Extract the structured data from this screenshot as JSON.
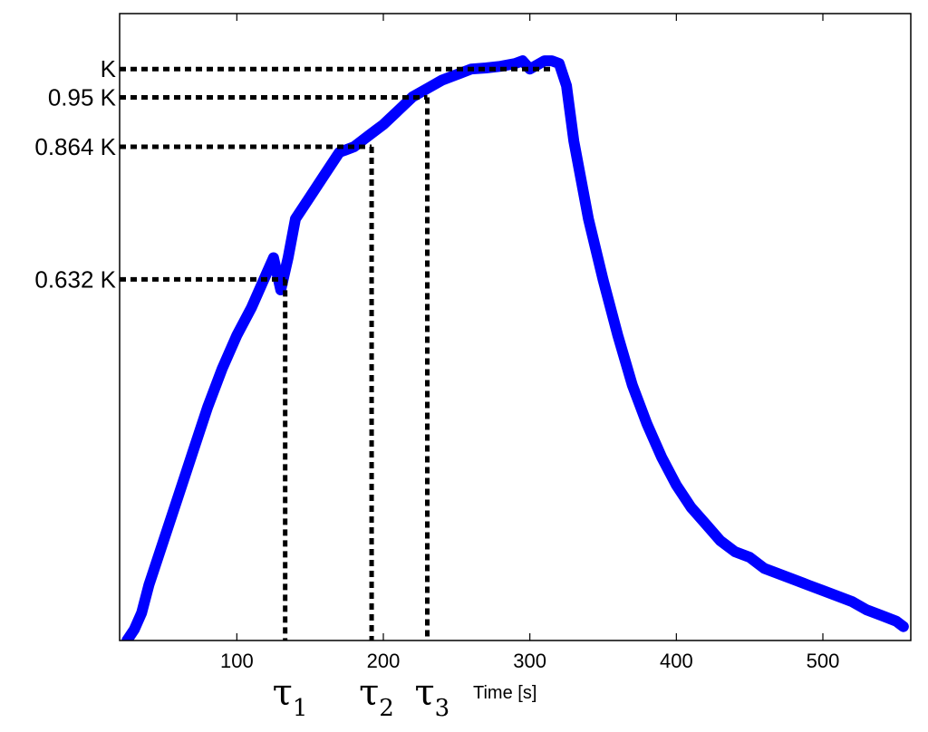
{
  "chart_data": {
    "type": "line",
    "title": "",
    "xlabel": "Time [s]",
    "ylabel": "",
    "xlim": [
      20,
      560
    ],
    "ylim": [
      0,
      1.13
    ],
    "grid": false,
    "x_ticks": [
      100,
      200,
      300,
      400,
      500
    ],
    "x_tick_labels": [
      "100",
      "200",
      "300",
      "400",
      "500"
    ],
    "series": [
      {
        "color": "#0000ff",
        "x": [
          25,
          30,
          35,
          40,
          50,
          60,
          70,
          80,
          90,
          100,
          110,
          120,
          125,
          130,
          135,
          140,
          150,
          160,
          170,
          180,
          190,
          195,
          200,
          210,
          220,
          230,
          240,
          250,
          260,
          270,
          280,
          290,
          295,
          300,
          310,
          315,
          320,
          325,
          330,
          340,
          350,
          360,
          370,
          380,
          390,
          400,
          410,
          420,
          430,
          440,
          450,
          460,
          470,
          480,
          490,
          500,
          510,
          520,
          530,
          540,
          550,
          555
        ],
        "y": [
          0.0,
          0.02,
          0.05,
          0.1,
          0.18,
          0.26,
          0.34,
          0.42,
          0.49,
          0.55,
          0.6,
          0.66,
          0.69,
          0.632,
          0.69,
          0.76,
          0.8,
          0.84,
          0.88,
          0.89,
          0.91,
          0.92,
          0.93,
          0.955,
          0.98,
          0.995,
          1.01,
          1.02,
          1.03,
          1.032,
          1.035,
          1.04,
          1.045,
          1.03,
          1.045,
          1.045,
          1.04,
          1.0,
          0.9,
          0.76,
          0.65,
          0.55,
          0.46,
          0.39,
          0.33,
          0.28,
          0.24,
          0.21,
          0.18,
          0.16,
          0.15,
          0.13,
          0.12,
          0.11,
          0.1,
          0.09,
          0.08,
          0.07,
          0.055,
          0.045,
          0.035,
          0.025
        ]
      }
    ],
    "reference_levels": [
      {
        "label": "K",
        "y": 1.03,
        "x_end": 315
      },
      {
        "label": "0.95 K",
        "y": 0.979,
        "x_end": 230
      },
      {
        "label": "0.864 K",
        "y": 0.89,
        "x_end": 192
      },
      {
        "label": "0.632 K",
        "y": 0.651,
        "x_end": 133
      }
    ],
    "time_constants": [
      {
        "symbol": "τ",
        "subscript": "1",
        "x": 133
      },
      {
        "symbol": "τ",
        "subscript": "2",
        "x": 192
      },
      {
        "symbol": "τ",
        "subscript": "3",
        "x": 230
      }
    ]
  }
}
